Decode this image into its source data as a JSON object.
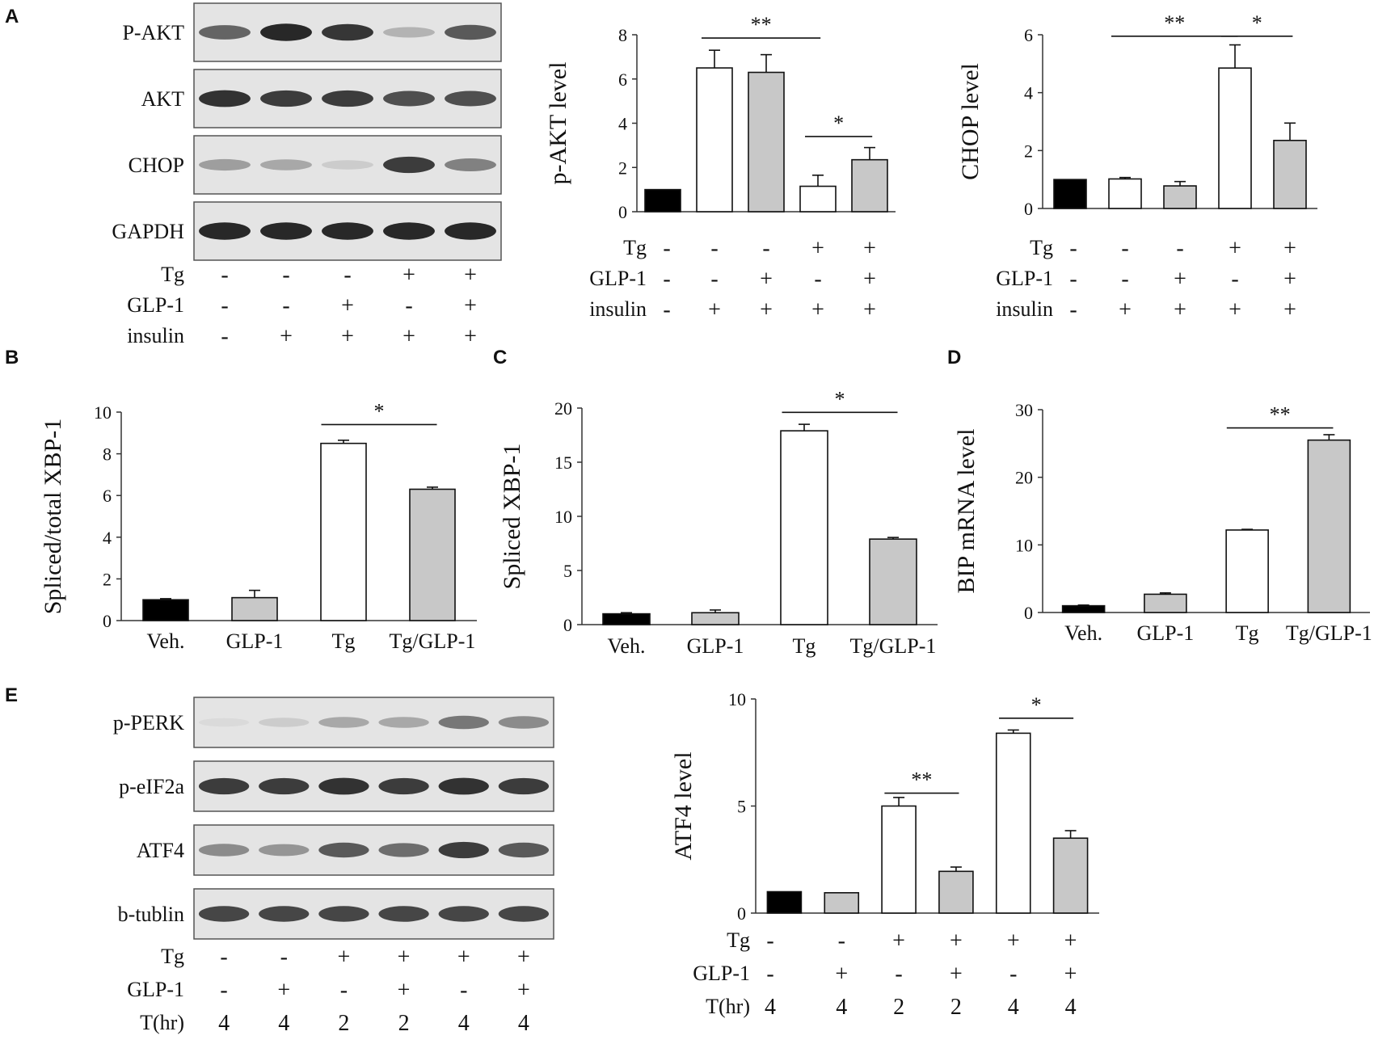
{
  "panel_letters": {
    "A": "A",
    "B": "B",
    "C": "C",
    "D": "D",
    "E": "E"
  },
  "colors": {
    "black_bar": "#000000",
    "white_bar": "#ffffff",
    "gray_bar": "#c8c8c8",
    "blot_bg": "#e4e4e4",
    "band": "#1e1e1e"
  },
  "blot_A": {
    "rows": [
      {
        "label": "P-AKT",
        "band_strength": [
          0.65,
          0.95,
          0.88,
          0.25,
          0.7
        ]
      },
      {
        "label": "AKT",
        "band_strength": [
          0.9,
          0.85,
          0.85,
          0.75,
          0.75
        ]
      },
      {
        "label": "CHOP",
        "band_strength": [
          0.35,
          0.3,
          0.12,
          0.85,
          0.5
        ]
      },
      {
        "label": "GAPDH",
        "band_strength": [
          0.95,
          0.95,
          0.95,
          0.95,
          0.95
        ]
      }
    ],
    "conditions": [
      {
        "label": "Tg",
        "values": [
          "-",
          "-",
          "-",
          "+",
          "+"
        ]
      },
      {
        "label": "GLP-1",
        "values": [
          "-",
          "-",
          "+",
          "-",
          "+"
        ]
      },
      {
        "label": "insulin",
        "values": [
          "-",
          "+",
          "+",
          "+",
          "+"
        ]
      }
    ]
  },
  "blot_E": {
    "rows": [
      {
        "label": "p-PERK",
        "band_strength": [
          0.05,
          0.12,
          0.3,
          0.3,
          0.55,
          0.45
        ]
      },
      {
        "label": "p-eIF2a",
        "band_strength": [
          0.85,
          0.85,
          0.9,
          0.85,
          0.9,
          0.85
        ]
      },
      {
        "label": "ATF4",
        "band_strength": [
          0.45,
          0.4,
          0.7,
          0.6,
          0.85,
          0.7
        ]
      },
      {
        "label": "b-tublin",
        "band_strength": [
          0.8,
          0.8,
          0.8,
          0.8,
          0.8,
          0.8
        ]
      }
    ],
    "conditions": [
      {
        "label": "Tg",
        "values": [
          "-",
          "-",
          "+",
          "+",
          "+",
          "+"
        ]
      },
      {
        "label": "GLP-1",
        "values": [
          "-",
          "+",
          "-",
          "+",
          "-",
          "+"
        ]
      },
      {
        "label": "T(hr)",
        "values": [
          "4",
          "4",
          "2",
          "2",
          "4",
          "4"
        ]
      }
    ]
  },
  "chart_data": [
    {
      "id": "A2",
      "type": "bar",
      "ylabel": "p-AKT level",
      "xlabel": "",
      "ylim": [
        0,
        8
      ],
      "yticks": [
        0,
        2,
        4,
        6,
        8
      ],
      "values": [
        1.0,
        6.5,
        6.3,
        1.15,
        2.35
      ],
      "errors": [
        0,
        0.8,
        0.8,
        0.5,
        0.55
      ],
      "fills": [
        "black",
        "white",
        "gray",
        "white",
        "gray"
      ],
      "conditions": [
        {
          "label": "Tg",
          "values": [
            "-",
            "-",
            "-",
            "+",
            "+"
          ]
        },
        {
          "label": "GLP-1",
          "values": [
            "-",
            "-",
            "+",
            "-",
            "+"
          ]
        },
        {
          "label": "insulin",
          "values": [
            "-",
            "+",
            "+",
            "+",
            "+"
          ]
        }
      ],
      "significance": [
        {
          "from": 1,
          "to": 3,
          "label": "**",
          "y": 7.85
        },
        {
          "from": 3,
          "to": 4,
          "label": "*",
          "y": 3.4
        }
      ]
    },
    {
      "id": "A3",
      "type": "bar",
      "ylabel": "CHOP level",
      "xlabel": "",
      "ylim": [
        0,
        6
      ],
      "yticks": [
        0,
        2,
        4,
        6
      ],
      "values": [
        1.0,
        1.02,
        0.78,
        4.85,
        2.35
      ],
      "errors": [
        0,
        0.05,
        0.15,
        0.8,
        0.6
      ],
      "fills": [
        "black",
        "white",
        "gray",
        "white",
        "gray"
      ],
      "conditions": [
        {
          "label": "Tg",
          "values": [
            "-",
            "-",
            "-",
            "+",
            "+"
          ]
        },
        {
          "label": "GLP-1",
          "values": [
            "-",
            "-",
            "+",
            "-",
            "+"
          ]
        },
        {
          "label": "insulin",
          "values": [
            "-",
            "+",
            "+",
            "+",
            "+"
          ]
        }
      ],
      "significance": [
        {
          "from": 1,
          "to": 3,
          "label": "**",
          "y": 5.95
        },
        {
          "from": 3,
          "to": 4,
          "label": "*",
          "y": 5.95
        }
      ]
    },
    {
      "id": "B",
      "type": "bar",
      "ylabel": "Spliced/total XBP-1",
      "xlabel": "",
      "ylim": [
        0,
        10
      ],
      "yticks": [
        0,
        2,
        4,
        6,
        8,
        10
      ],
      "categories": [
        "Veh.",
        "GLP-1",
        "Tg",
        "Tg/GLP-1"
      ],
      "values": [
        1.0,
        1.1,
        8.5,
        6.3
      ],
      "errors": [
        0.05,
        0.35,
        0.15,
        0.1
      ],
      "fills": [
        "black",
        "gray",
        "white",
        "gray"
      ],
      "significance": [
        {
          "from": 2,
          "to": 3,
          "label": "*",
          "y": 9.4
        }
      ]
    },
    {
      "id": "C",
      "type": "bar",
      "ylabel": "Spliced  XBP-1",
      "xlabel": "",
      "ylim": [
        0,
        20
      ],
      "yticks": [
        0,
        5,
        10,
        15,
        20
      ],
      "categories": [
        "Veh.",
        "GLP-1",
        "Tg",
        "Tg/GLP-1"
      ],
      "values": [
        1.0,
        1.1,
        17.9,
        7.9
      ],
      "errors": [
        0.1,
        0.25,
        0.6,
        0.15
      ],
      "fills": [
        "black",
        "gray",
        "white",
        "gray"
      ],
      "significance": [
        {
          "from": 2,
          "to": 3,
          "label": "*",
          "y": 19.6
        }
      ]
    },
    {
      "id": "D",
      "type": "bar",
      "ylabel": "BIP  mRNA  level",
      "xlabel": "",
      "ylim": [
        0,
        30
      ],
      "yticks": [
        0,
        10,
        20,
        30
      ],
      "categories": [
        "Veh.",
        "GLP-1",
        "Tg",
        "Tg/GLP-1"
      ],
      "values": [
        1.0,
        2.7,
        12.2,
        25.5
      ],
      "errors": [
        0.1,
        0.2,
        0.1,
        0.8
      ],
      "fills": [
        "black",
        "gray",
        "white",
        "gray"
      ],
      "significance": [
        {
          "from": 2,
          "to": 3,
          "label": "**",
          "y": 27.3
        }
      ]
    },
    {
      "id": "E2",
      "type": "bar",
      "ylabel": "ATF4 level",
      "xlabel": "",
      "ylim": [
        0,
        10
      ],
      "yticks": [
        0,
        5,
        10
      ],
      "values": [
        1.0,
        0.95,
        5.0,
        1.95,
        8.4,
        3.5
      ],
      "errors": [
        0,
        0,
        0.4,
        0.2,
        0.15,
        0.35
      ],
      "fills": [
        "black",
        "gray",
        "white",
        "gray",
        "white",
        "gray"
      ],
      "conditions": [
        {
          "label": "Tg",
          "values": [
            "-",
            "-",
            "+",
            "+",
            "+",
            "+"
          ]
        },
        {
          "label": "GLP-1",
          "values": [
            "-",
            "+",
            "-",
            "+",
            "-",
            "+"
          ]
        },
        {
          "label": "T(hr)",
          "values": [
            "4",
            "4",
            "2",
            "2",
            "4",
            "4"
          ]
        }
      ],
      "significance": [
        {
          "from": 2,
          "to": 3,
          "label": "**",
          "y": 5.6
        },
        {
          "from": 4,
          "to": 5,
          "label": "*",
          "y": 9.1
        }
      ]
    }
  ]
}
